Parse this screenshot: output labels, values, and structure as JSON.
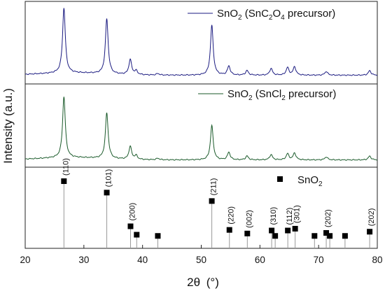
{
  "chart_data": {
    "type": "line",
    "xlabel_main": "2θ",
    "xlabel_unit": "(°)",
    "ylabel": "Intensity (a.u.)",
    "xlim": [
      20,
      80
    ],
    "xticks": [
      "20",
      "30",
      "40",
      "50",
      "60",
      "70",
      "80"
    ],
    "series": [
      {
        "name": "SnO2 (SnC2O4 precursor)",
        "legend_parts": [
          "SnO",
          "2",
          " (SnC",
          "2",
          "O",
          "4",
          " precursor)"
        ],
        "color": "#1a1a80",
        "baseline": 0.06,
        "peaks": [
          {
            "x": 26.6,
            "h": 0.86
          },
          {
            "x": 33.9,
            "h": 0.73
          },
          {
            "x": 37.9,
            "h": 0.2
          },
          {
            "x": 38.9,
            "h": 0.05
          },
          {
            "x": 42.6,
            "h": 0.02
          },
          {
            "x": 51.8,
            "h": 0.66
          },
          {
            "x": 54.7,
            "h": 0.12
          },
          {
            "x": 57.8,
            "h": 0.06
          },
          {
            "x": 61.9,
            "h": 0.09
          },
          {
            "x": 64.7,
            "h": 0.1
          },
          {
            "x": 65.9,
            "h": 0.11
          },
          {
            "x": 71.3,
            "h": 0.05
          },
          {
            "x": 78.7,
            "h": 0.06
          }
        ]
      },
      {
        "name": "SnO2 (SnCl2 precursor)",
        "legend_parts": [
          "SnO",
          "2",
          " (SnCl",
          "2",
          " precursor)"
        ],
        "color": "#1a5a2a",
        "baseline": 0.04,
        "peaks": [
          {
            "x": 26.6,
            "h": 0.8
          },
          {
            "x": 33.9,
            "h": 0.6
          },
          {
            "x": 37.9,
            "h": 0.17
          },
          {
            "x": 38.9,
            "h": 0.05
          },
          {
            "x": 42.6,
            "h": 0.02
          },
          {
            "x": 51.8,
            "h": 0.45
          },
          {
            "x": 54.7,
            "h": 0.1
          },
          {
            "x": 57.8,
            "h": 0.05
          },
          {
            "x": 61.9,
            "h": 0.07
          },
          {
            "x": 64.7,
            "h": 0.08
          },
          {
            "x": 65.9,
            "h": 0.09
          },
          {
            "x": 71.3,
            "h": 0.04
          },
          {
            "x": 78.7,
            "h": 0.05
          }
        ]
      }
    ],
    "reference": {
      "legend_parts": [
        "SnO",
        "2"
      ],
      "peaks": [
        {
          "x": 26.6,
          "h": 1.0,
          "label": "(110)"
        },
        {
          "x": 33.9,
          "h": 0.81,
          "label": "(101)"
        },
        {
          "x": 37.95,
          "h": 0.25,
          "label": "(200)"
        },
        {
          "x": 39.0,
          "h": 0.11,
          "label": ""
        },
        {
          "x": 42.6,
          "h": 0.09,
          "label": ""
        },
        {
          "x": 51.8,
          "h": 0.67,
          "label": "(211)"
        },
        {
          "x": 54.8,
          "h": 0.19,
          "label": "(220)"
        },
        {
          "x": 57.85,
          "h": 0.13,
          "label": "(002)"
        },
        {
          "x": 62.0,
          "h": 0.18,
          "label": "(310)"
        },
        {
          "x": 62.6,
          "h": 0.09,
          "label": ""
        },
        {
          "x": 64.75,
          "h": 0.18,
          "label": "(112)"
        },
        {
          "x": 66.0,
          "h": 0.21,
          "label": "(301)"
        },
        {
          "x": 69.3,
          "h": 0.09,
          "label": ""
        },
        {
          "x": 71.3,
          "h": 0.14,
          "label": "(202)"
        },
        {
          "x": 71.9,
          "h": 0.09,
          "label": ""
        },
        {
          "x": 74.5,
          "h": 0.09,
          "label": ""
        },
        {
          "x": 78.7,
          "h": 0.16,
          "label": "(202)"
        }
      ]
    }
  }
}
